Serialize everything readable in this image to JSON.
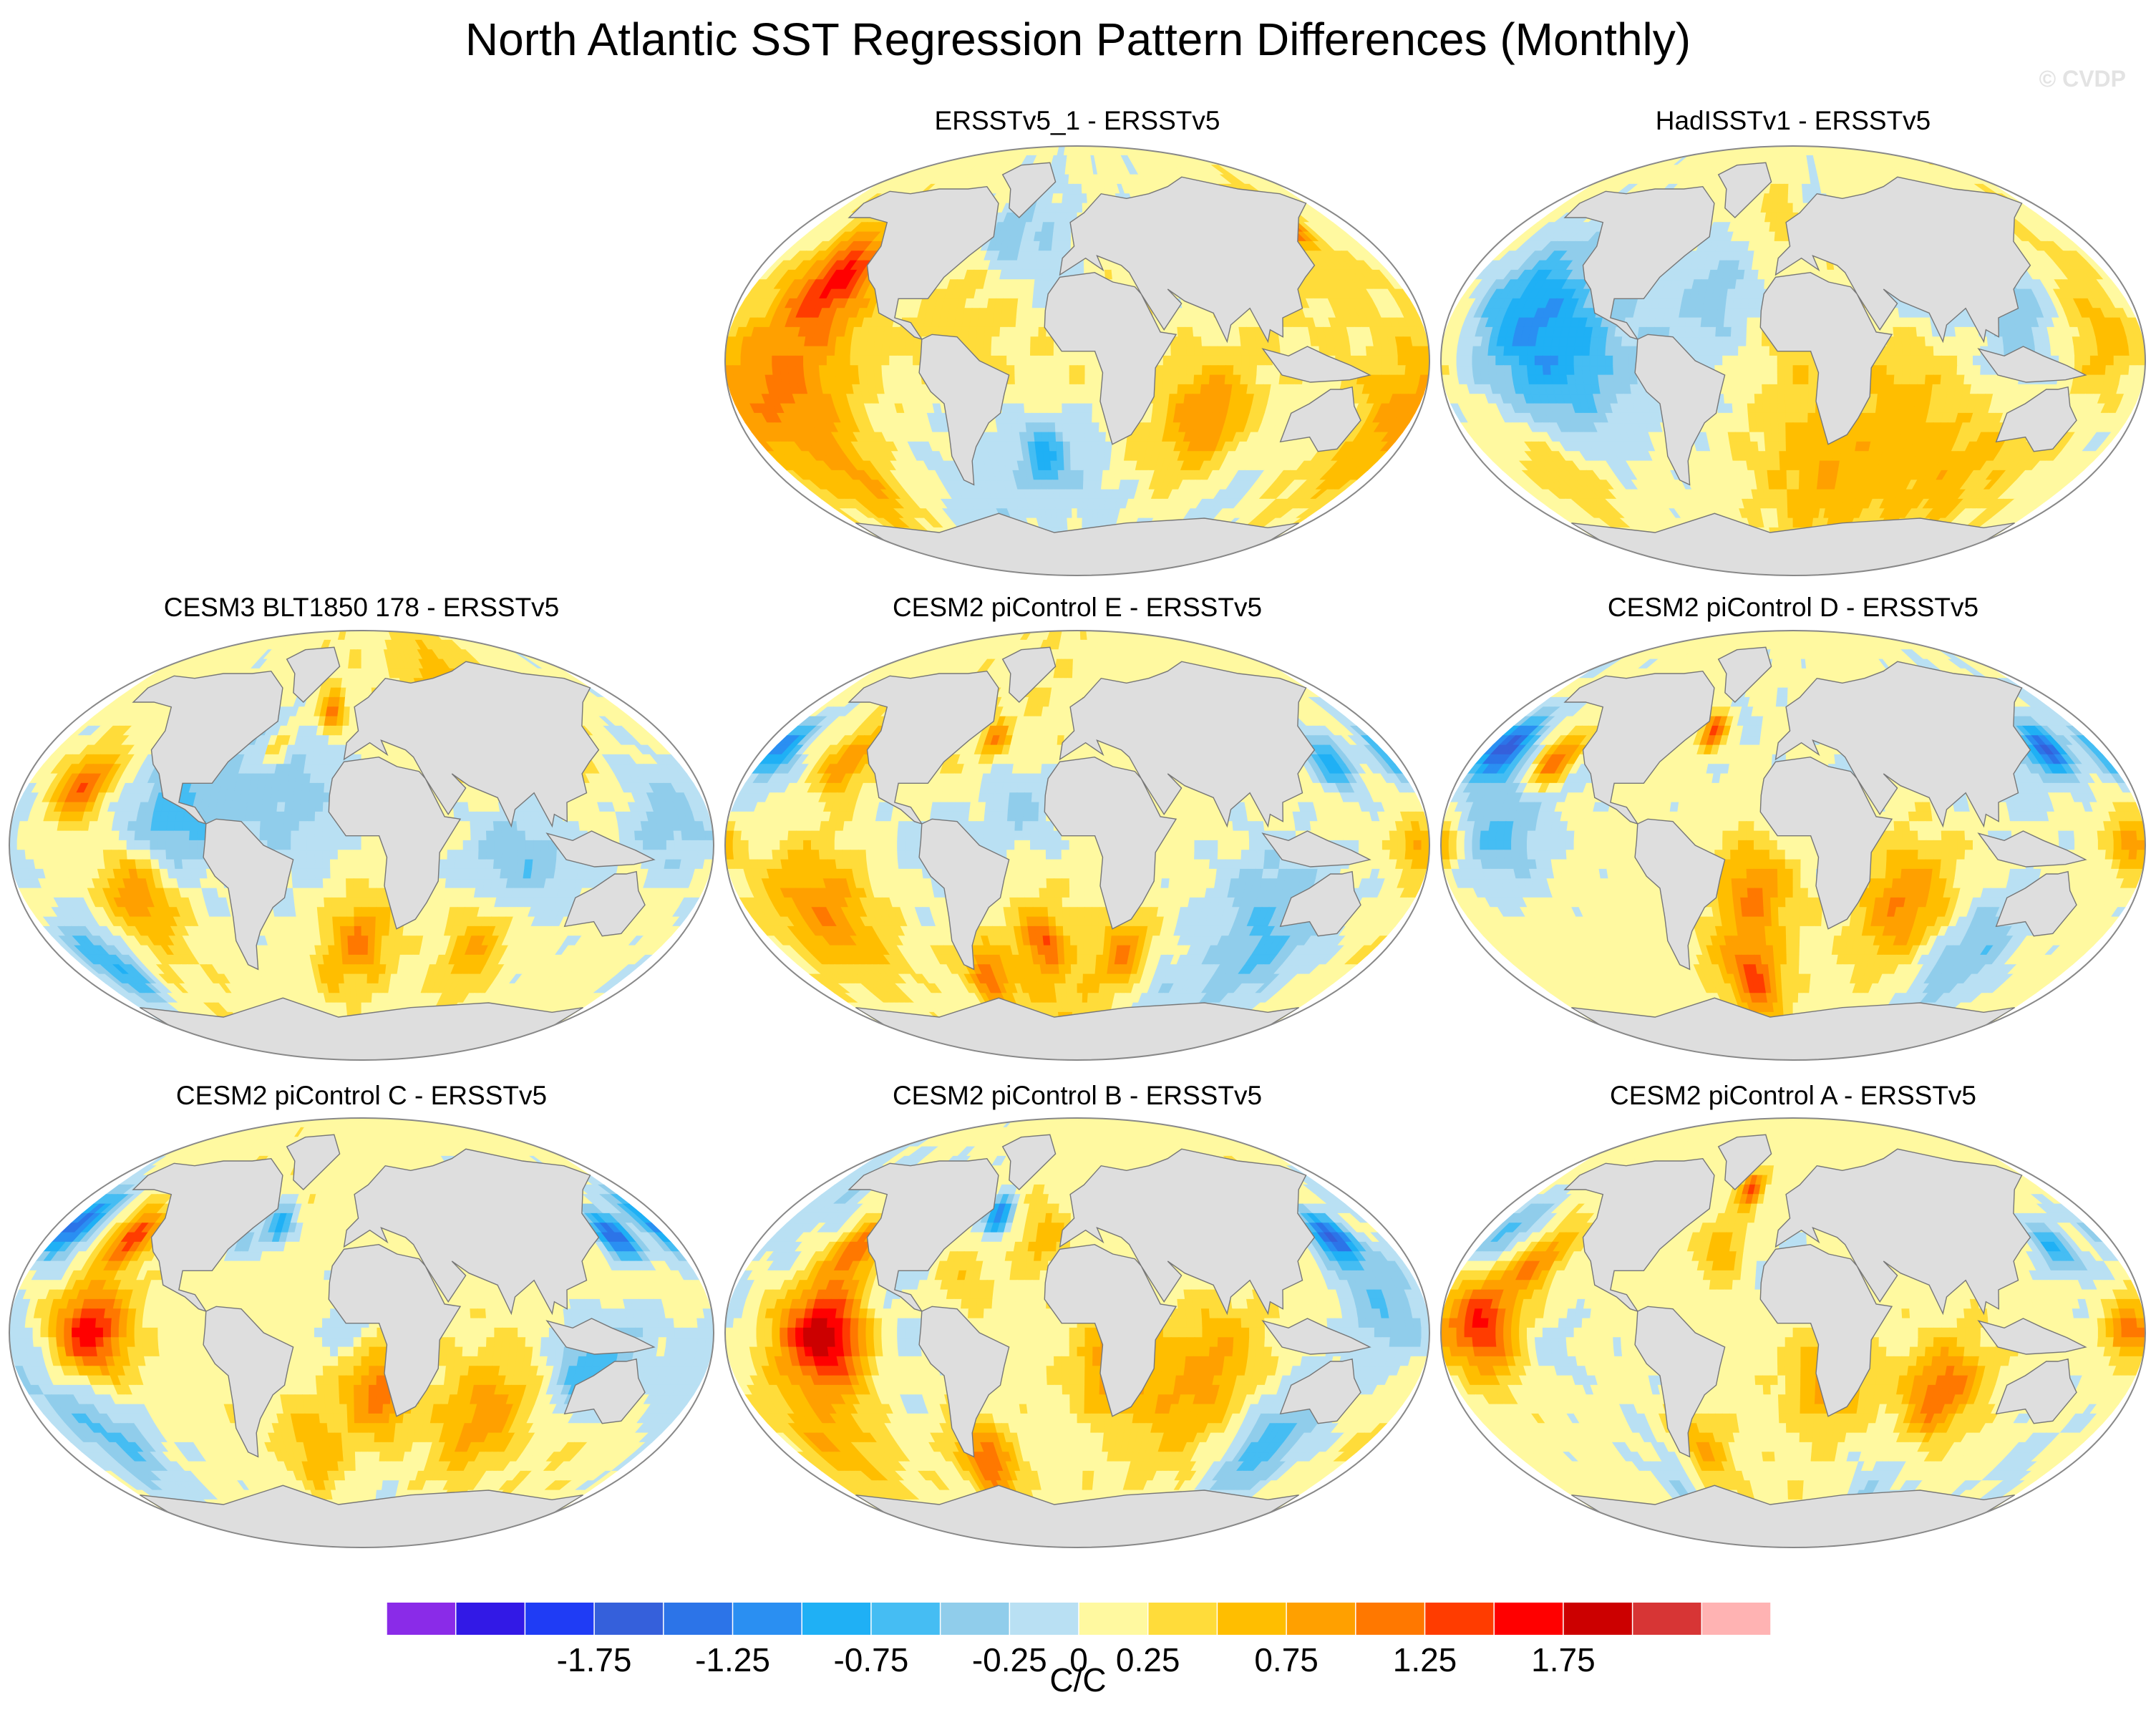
{
  "chart_data": {
    "type": "heatmap",
    "title": "North Atlantic SST Regression Pattern Differences (Monthly)",
    "watermark": "© CVDP",
    "projection": "Robinson (global)",
    "units": "C/C",
    "colorbar": {
      "levels": [
        -2.25,
        -2.0,
        -1.75,
        -1.5,
        -1.25,
        -1.0,
        -0.75,
        -0.5,
        -0.25,
        0,
        0.25,
        0.5,
        0.75,
        1.0,
        1.25,
        1.5,
        1.75,
        2.0,
        2.25
      ],
      "tick_labels": [
        "-1.75",
        "-1.25",
        "-0.75",
        "-0.25",
        "0",
        "0.25",
        "0.75",
        "1.25",
        "1.75"
      ],
      "tick_values": [
        -1.75,
        -1.25,
        -0.75,
        -0.25,
        0,
        0.25,
        0.75,
        1.25,
        1.75
      ],
      "colors": [
        "#8a2be8",
        "#3219e6",
        "#1f3cf5",
        "#3560db",
        "#2c74e8",
        "#2a8ff2",
        "#1fb0f5",
        "#45bdf3",
        "#90cdeb",
        "#b9e0f3",
        "#fff9a0",
        "#ffdc3a",
        "#ffbe00",
        "#ffa000",
        "#ff7800",
        "#ff3c00",
        "#ff0000",
        "#cc0000",
        "#d73535",
        "#ffb3b3"
      ]
    },
    "panels": [
      {
        "title": "ERSSTv5_1 - ERSSTv5",
        "row": 1,
        "col": 2,
        "seed": 11,
        "dominant": "warm (0.25 to 1.25) over most ocean; cool patches in S. Atlantic and Southern Ocean",
        "anomalies": [
          [
            -135,
            35,
            1.3,
            22
          ],
          [
            -150,
            -10,
            0.9,
            35
          ],
          [
            -20,
            -40,
            -0.8,
            14
          ],
          [
            70,
            -25,
            0.9,
            25
          ],
          [
            160,
            -30,
            0.6,
            30
          ],
          [
            -60,
            -60,
            -0.3,
            40
          ],
          [
            145,
            60,
            1.3,
            10
          ],
          [
            -140,
            -55,
            0.5,
            20
          ],
          [
            20,
            -60,
            -0.2,
            30
          ]
        ]
      },
      {
        "title": "HadISSTv1 - ERSSTv5",
        "row": 1,
        "col": 3,
        "seed": 23,
        "dominant": "cool (-0.25 to -0.75) in eastern Pacific, warm speckled Southern Ocean",
        "anomalies": [
          [
            -120,
            0,
            -0.8,
            35
          ],
          [
            -150,
            30,
            -0.4,
            25
          ],
          [
            20,
            -45,
            0.6,
            40
          ],
          [
            100,
            -45,
            0.5,
            35
          ],
          [
            -40,
            30,
            -0.4,
            20
          ],
          [
            160,
            10,
            0.5,
            25
          ],
          [
            60,
            -10,
            0.3,
            25
          ],
          [
            -10,
            60,
            0.4,
            12
          ]
        ]
      },
      {
        "title": "CESM3 BLT1850 178 - ERSSTv5",
        "row": 2,
        "col": 1,
        "seed": 37,
        "dominant": "cool (-0.25 to -0.75) tropics and Indian Ocean; warm South Atlantic/Indian midlatitudes",
        "anomalies": [
          [
            -150,
            25,
            1.2,
            14
          ],
          [
            -120,
            -20,
            1.0,
            20
          ],
          [
            0,
            -40,
            0.9,
            18
          ],
          [
            70,
            -40,
            0.8,
            20
          ],
          [
            -160,
            -50,
            -0.9,
            18
          ],
          [
            80,
            -10,
            -0.6,
            30
          ],
          [
            -20,
            55,
            1.0,
            8
          ],
          [
            -50,
            40,
            0.7,
            8
          ],
          [
            -100,
            10,
            -0.7,
            25
          ],
          [
            160,
            10,
            -0.5,
            25
          ]
        ]
      },
      {
        "title": "CESM2 piControl E - ERSSTv5",
        "row": 2,
        "col": 2,
        "seed": 41,
        "dominant": "mixed; warm South Pacific band, cool North Pacific & Southern Ocean",
        "anomalies": [
          [
            -175,
            40,
            -1.2,
            12
          ],
          [
            -130,
            35,
            0.9,
            14
          ],
          [
            -140,
            -25,
            0.9,
            30
          ],
          [
            -60,
            -55,
            0.9,
            15
          ],
          [
            -20,
            -40,
            0.9,
            12
          ],
          [
            30,
            -45,
            0.9,
            15
          ],
          [
            120,
            -40,
            -0.6,
            30
          ],
          [
            145,
            35,
            -1.0,
            12
          ],
          [
            -50,
            45,
            0.8,
            8
          ],
          [
            -30,
            15,
            -0.4,
            20
          ],
          [
            175,
            0,
            0.8,
            10
          ]
        ]
      },
      {
        "title": "CESM2 piControl D - ERSSTv5",
        "row": 2,
        "col": 3,
        "seed": 53,
        "dominant": "warm Indian Ocean & S. Atlantic, cool North Pacific",
        "anomalies": [
          [
            -170,
            40,
            -1.5,
            12
          ],
          [
            -135,
            35,
            1.2,
            12
          ],
          [
            -150,
            5,
            -0.6,
            25
          ],
          [
            -20,
            -20,
            0.9,
            20
          ],
          [
            60,
            -25,
            0.9,
            25
          ],
          [
            150,
            40,
            -1.4,
            10
          ],
          [
            -50,
            48,
            1.2,
            8
          ],
          [
            -30,
            -55,
            0.9,
            18
          ],
          [
            110,
            -45,
            -0.6,
            25
          ],
          [
            175,
            0,
            0.8,
            10
          ]
        ]
      },
      {
        "title": "CESM2 piControl C - ERSSTv5",
        "row": 3,
        "col": 1,
        "seed": 67,
        "dominant": "strong warm equatorial Pacific, cool North Pacific",
        "anomalies": [
          [
            -140,
            0,
            1.6,
            20
          ],
          [
            -175,
            45,
            -1.5,
            14
          ],
          [
            -135,
            40,
            1.3,
            12
          ],
          [
            150,
            40,
            -1.6,
            12
          ],
          [
            10,
            -25,
            1.0,
            20
          ],
          [
            70,
            -35,
            0.8,
            25
          ],
          [
            -30,
            -50,
            0.6,
            20
          ],
          [
            120,
            -15,
            -0.8,
            20
          ],
          [
            -50,
            45,
            -1.2,
            8
          ],
          [
            -150,
            -45,
            -0.6,
            25
          ]
        ]
      },
      {
        "title": "CESM2 piControl B - ERSSTv5",
        "row": 3,
        "col": 2,
        "seed": 79,
        "dominant": "strong warm eastern Pacific (1.25-1.75), cool western Pacific & subpolar N. Atlantic",
        "anomalies": [
          [
            -130,
            0,
            1.7,
            22
          ],
          [
            -125,
            35,
            1.1,
            14
          ],
          [
            -60,
            -55,
            1.1,
            18
          ],
          [
            150,
            40,
            -1.6,
            12
          ],
          [
            -50,
            48,
            -1.4,
            8
          ],
          [
            20,
            -15,
            0.9,
            20
          ],
          [
            60,
            -30,
            0.6,
            25
          ],
          [
            120,
            -45,
            -0.7,
            25
          ],
          [
            160,
            10,
            -0.6,
            25
          ],
          [
            -20,
            40,
            0.5,
            15
          ]
        ]
      },
      {
        "title": "CESM2 piControl A - ERSSTv5",
        "row": 3,
        "col": 3,
        "seed": 83,
        "dominant": "warm tropical Pacific & Indian Ocean, cool North Pacific",
        "anomalies": [
          [
            -160,
            0,
            1.3,
            20
          ],
          [
            -170,
            40,
            -0.8,
            15
          ],
          [
            -140,
            30,
            0.8,
            12
          ],
          [
            80,
            -25,
            1.1,
            20
          ],
          [
            20,
            -20,
            0.8,
            20
          ],
          [
            -60,
            -50,
            0.8,
            18
          ],
          [
            150,
            35,
            -0.9,
            12
          ],
          [
            -30,
            60,
            1.2,
            8
          ],
          [
            -40,
            35,
            0.6,
            12
          ],
          [
            170,
            0,
            1.0,
            10
          ]
        ]
      }
    ]
  }
}
